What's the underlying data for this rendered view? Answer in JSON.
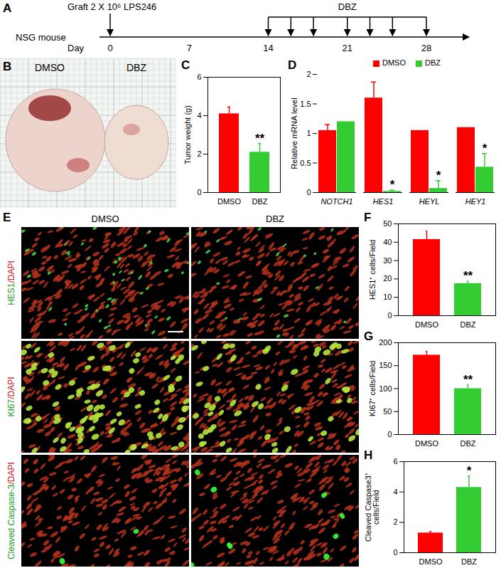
{
  "chart_data": [
    {
      "panel": "C",
      "type": "bar",
      "categories": [
        "DMSO",
        "DBZ"
      ],
      "values": [
        4.1,
        2.1
      ],
      "errors": [
        0.35,
        0.45
      ],
      "colors": [
        "#ff0000",
        "#33cc33"
      ],
      "annotations": [
        null,
        "**"
      ],
      "ylabel": "Tumor weight (g)",
      "ylim": [
        0,
        6
      ],
      "yticks": [
        0,
        2,
        4,
        6
      ]
    },
    {
      "panel": "D",
      "type": "bar",
      "categories": [
        "NOTCH1",
        "HES1",
        "HEYL",
        "HEY1"
      ],
      "series": [
        {
          "name": "DMSO",
          "color": "#ff0000",
          "values": [
            1.05,
            1.6,
            1.05,
            1.1
          ],
          "errors": [
            0.1,
            0.27,
            0,
            0
          ],
          "annotations": [
            null,
            null,
            null,
            null
          ]
        },
        {
          "name": "DBZ",
          "color": "#33cc33",
          "values": [
            1.2,
            0.02,
            0.07,
            0.43
          ],
          "errors": [
            0,
            0.02,
            0.13,
            0.23
          ],
          "annotations": [
            null,
            "*",
            "*",
            "*"
          ]
        }
      ],
      "legend": "top",
      "ylabel": "Relative mRNA level",
      "ylim": [
        0,
        2
      ],
      "yticks": [
        0,
        0.5,
        1,
        1.5,
        2
      ]
    },
    {
      "panel": "F",
      "type": "bar",
      "categories": [
        "DMSO",
        "DBZ"
      ],
      "values": [
        41.5,
        17.5
      ],
      "errors": [
        4.5,
        1.2
      ],
      "colors": [
        "#ff0000",
        "#33cc33"
      ],
      "annotations": [
        null,
        "**"
      ],
      "ylabel": "HES1⁺ cells/Field",
      "ylim": [
        0,
        50
      ],
      "yticks": [
        0,
        10,
        20,
        30,
        40,
        50
      ]
    },
    {
      "panel": "G",
      "type": "bar",
      "categories": [
        "DMSO",
        "DBZ"
      ],
      "values": [
        173,
        100
      ],
      "errors": [
        8,
        8
      ],
      "colors": [
        "#ff0000",
        "#33cc33"
      ],
      "annotations": [
        null,
        "**"
      ],
      "ylabel": "KI67⁺ cells/Field",
      "ylim": [
        0,
        200
      ],
      "yticks": [
        0,
        50,
        100,
        150,
        200
      ]
    },
    {
      "panel": "H",
      "type": "bar",
      "categories": [
        "DMSO",
        "DBZ"
      ],
      "values": [
        1.3,
        4.3
      ],
      "errors": [
        0.1,
        0.75
      ],
      "colors": [
        "#ff0000",
        "#33cc33"
      ],
      "annotations": [
        null,
        "*"
      ],
      "ylabel": "Cleaved Caspase3⁺\ncells/Field",
      "ylim": [
        0,
        6
      ],
      "yticks": [
        0,
        2,
        4,
        6
      ]
    }
  ],
  "timeline": {
    "panel": "A",
    "host": "NSG mouse",
    "graft": {
      "label": "Graft 2 X 10⁶ LPS246",
      "day": 0
    },
    "treatment": {
      "label": "DBZ",
      "days": [
        14,
        16,
        18,
        21,
        23,
        25,
        28
      ]
    },
    "axis_label": "Day",
    "ticks": [
      0,
      7,
      14,
      21,
      28
    ]
  },
  "photo": {
    "panel": "B",
    "labels": [
      "DMSO",
      "DBZ"
    ]
  },
  "staining": {
    "panel": "E",
    "columns": [
      "DMSO",
      "DBZ"
    ],
    "rows": [
      "HES1/DAPI",
      "KI67/DAPI",
      "Cleaved Caspase-3/DAPI"
    ]
  }
}
